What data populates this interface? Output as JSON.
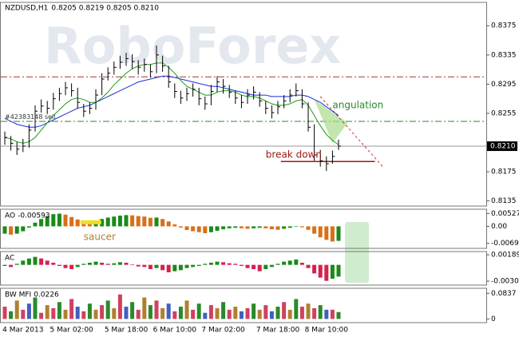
{
  "chart_data": [
    {
      "type": "candlestick",
      "title": "NZDUSD,H1",
      "subtitle": "0.8205 0.8219 0.8205 0.8210",
      "watermark": "RoboForex",
      "categories": [
        null,
        null,
        null,
        "4 Mar 2013",
        null,
        null,
        null,
        null,
        null,
        null,
        null,
        "5 Mar 02:00",
        null,
        null,
        null,
        null,
        null,
        null,
        null,
        null,
        "5 Mar 18:00",
        null,
        null,
        null,
        null,
        null,
        null,
        null,
        "6 Mar 10:00",
        null,
        null,
        null,
        null,
        null,
        null,
        null,
        "7 Mar 02:00",
        null,
        null,
        null,
        null,
        null,
        null,
        null,
        null,
        "7 Mar 18:00",
        null,
        null,
        null,
        null,
        null,
        null,
        null,
        "8 Mar 10:00",
        null,
        null
      ],
      "high": [
        0.823,
        0.8224,
        0.8216,
        0.822,
        0.824,
        0.8266,
        0.8274,
        0.8272,
        0.8283,
        0.829,
        0.8298,
        0.8296,
        0.829,
        0.8268,
        0.827,
        0.8288,
        0.831,
        0.8318,
        0.8326,
        0.8334,
        0.8338,
        0.8336,
        0.8328,
        0.833,
        0.8322,
        0.8348,
        0.8334,
        0.832,
        0.8296,
        0.8286,
        0.829,
        0.8296,
        0.829,
        0.8278,
        0.8294,
        0.8306,
        0.8302,
        0.8294,
        0.8286,
        0.828,
        0.8288,
        0.8292,
        0.8284,
        0.8272,
        0.8266,
        0.8272,
        0.828,
        0.8288,
        0.8296,
        0.8288,
        0.827,
        0.824,
        0.8205,
        0.8196,
        0.8204,
        0.8219
      ],
      "low": [
        0.8212,
        0.8204,
        0.8198,
        0.8202,
        0.8208,
        0.823,
        0.8256,
        0.8254,
        0.826,
        0.8272,
        0.828,
        0.8278,
        0.8262,
        0.825,
        0.8254,
        0.826,
        0.828,
        0.83,
        0.8308,
        0.8316,
        0.832,
        0.8316,
        0.8308,
        0.8312,
        0.8304,
        0.831,
        0.8312,
        0.829,
        0.8276,
        0.8268,
        0.8272,
        0.8278,
        0.8266,
        0.826,
        0.8266,
        0.8284,
        0.8282,
        0.8276,
        0.8268,
        0.8262,
        0.8268,
        0.8274,
        0.8264,
        0.8254,
        0.8248,
        0.8254,
        0.8262,
        0.827,
        0.8278,
        0.8262,
        0.823,
        0.819,
        0.8182,
        0.8176,
        0.8186,
        0.8205
      ],
      "close": [
        0.8222,
        0.8214,
        0.8206,
        0.821,
        0.8232,
        0.8258,
        0.8265,
        0.8262,
        0.8275,
        0.8282,
        0.829,
        0.8286,
        0.827,
        0.8258,
        0.8262,
        0.828,
        0.8302,
        0.831,
        0.8318,
        0.8325,
        0.833,
        0.8326,
        0.8318,
        0.8322,
        0.8312,
        0.8335,
        0.832,
        0.8298,
        0.8285,
        0.8276,
        0.8282,
        0.8288,
        0.8275,
        0.8268,
        0.8285,
        0.8298,
        0.8292,
        0.8284,
        0.8276,
        0.827,
        0.828,
        0.8284,
        0.8272,
        0.8262,
        0.8256,
        0.8264,
        0.8272,
        0.828,
        0.8286,
        0.8268,
        0.8236,
        0.8198,
        0.819,
        0.8186,
        0.8196,
        0.821
      ],
      "color": "#000000",
      "moving_averages": [
        {
          "color": "#1f2fd0",
          "values": [
            0.8248,
            0.8244,
            0.824,
            0.8238,
            0.8236,
            0.8236,
            0.8238,
            0.8242,
            0.8246,
            0.825,
            0.8254,
            0.8258,
            0.8262,
            0.8264,
            0.8266,
            0.827,
            0.8274,
            0.8278,
            0.8282,
            0.8286,
            0.829,
            0.8294,
            0.8298,
            0.83,
            0.8302,
            0.8304,
            0.8306,
            0.8306,
            0.8304,
            0.8302,
            0.83,
            0.8298,
            0.8296,
            0.8294,
            0.8292,
            0.8292,
            0.829,
            0.8288,
            0.8286,
            0.8284,
            0.8282,
            0.828,
            0.828,
            0.828,
            0.8278,
            0.8278,
            0.8278,
            0.8278,
            0.828,
            0.828,
            0.8278,
            0.8274,
            0.827,
            0.8264,
            0.8258,
            0.8252
          ]
        },
        {
          "color": "#1a9a1a",
          "values": [
            0.8222,
            0.822,
            0.8216,
            0.8214,
            0.8216,
            0.8222,
            0.8232,
            0.8242,
            0.8252,
            0.826,
            0.8268,
            0.8274,
            0.8276,
            0.8274,
            0.827,
            0.827,
            0.8276,
            0.8284,
            0.8294,
            0.8302,
            0.831,
            0.8316,
            0.832,
            0.8322,
            0.8322,
            0.8324,
            0.8324,
            0.8318,
            0.831,
            0.83,
            0.8292,
            0.8288,
            0.8284,
            0.828,
            0.828,
            0.8284,
            0.8286,
            0.8286,
            0.8284,
            0.828,
            0.8278,
            0.8278,
            0.8276,
            0.8272,
            0.8268,
            0.8266,
            0.8266,
            0.8268,
            0.8272,
            0.8274,
            0.8266,
            0.8252,
            0.8238,
            0.8226,
            0.8218,
            0.8212
          ]
        }
      ],
      "levels": [
        {
          "value": 0.8305,
          "color": "#b03030"
        },
        {
          "value": 0.8244,
          "color": "#2a8a2a"
        }
      ],
      "current_price": {
        "value": 0.821,
        "label": "0.8210"
      },
      "annotations": {
        "angulation": "angulation",
        "break_down": "break down",
        "order": "#42383148 sell"
      },
      "ylim": [
        0.8128,
        0.8407
      ],
      "yticks": [
        0.8375,
        0.8335,
        0.8295,
        0.8255,
        0.8175,
        0.8135
      ]
    },
    {
      "type": "bar",
      "name": "AO",
      "up_color": "#1a8a1a",
      "down_color": "#d8701a",
      "annotation": "saucer",
      "values": [
        -0.003,
        -0.0034,
        -0.003,
        -0.002,
        -0.0005,
        0.0015,
        0.003,
        0.0042,
        0.005,
        0.0052,
        0.0048,
        0.0038,
        0.0028,
        0.002,
        0.0018,
        0.0022,
        0.003,
        0.0036,
        0.004,
        0.0044,
        0.0046,
        0.0045,
        0.0042,
        0.004,
        0.0035,
        0.0036,
        0.003,
        0.002,
        0.0008,
        -0.0005,
        -0.0015,
        -0.002,
        -0.0024,
        -0.0028,
        -0.0024,
        -0.0018,
        -0.0012,
        -0.0008,
        -0.0006,
        -0.0008,
        -0.001,
        -0.0008,
        -0.0006,
        -0.0008,
        -0.0012,
        -0.0014,
        -0.001,
        -0.0006,
        -0.0002,
        -0.0004,
        -0.0014,
        -0.003,
        -0.0045,
        -0.0055,
        -0.0062,
        -0.00593
      ],
      "ylim": [
        -0.009,
        0.007
      ],
      "yticks": [
        0.00527,
        {
          "value": 0,
          "label": "0.00"
        },
        -0.00695
      ]
    },
    {
      "type": "bar",
      "name": "AC",
      "up_color": "#1a8a1a",
      "down_color": "#d82050",
      "values": [
        -0.0002,
        -0.0004,
        0.0002,
        0.0008,
        0.0012,
        0.0015,
        0.0012,
        0.0008,
        0.0004,
        -0.0002,
        -0.0006,
        -0.0008,
        -0.0004,
        0.0002,
        0.0004,
        0.0006,
        0.0004,
        0.0002,
        0.0003,
        0.0005,
        0.0004,
        0.0001,
        -0.0003,
        -0.0004,
        -0.0008,
        -0.0006,
        -0.001,
        -0.0014,
        -0.0012,
        -0.001,
        -0.0006,
        -0.0004,
        -0.0002,
        0.0002,
        0.0004,
        0.0006,
        0.0005,
        0.0003,
        0.0002,
        -0.0002,
        -0.0006,
        -0.0008,
        -0.0012,
        -0.0008,
        -0.0004,
        0.0002,
        0.0006,
        0.0008,
        0.001,
        0.0004,
        -0.0006,
        -0.0016,
        -0.0024,
        -0.003,
        -0.0026,
        -0.0022
      ],
      "ylim": [
        -0.0038,
        0.0025
      ],
      "yticks": [
        0.00189,
        -0.00305
      ]
    },
    {
      "type": "bar",
      "name": "BW MFI",
      "values": [
        0.04,
        0.025,
        0.06,
        0.03,
        0.05,
        0.07,
        0.02,
        0.045,
        0.035,
        0.055,
        0.03,
        0.065,
        0.04,
        0.025,
        0.05,
        0.03,
        0.045,
        0.06,
        0.035,
        0.08,
        0.04,
        0.055,
        0.03,
        0.07,
        0.045,
        0.06,
        0.035,
        0.05,
        0.025,
        0.04,
        0.06,
        0.03,
        0.05,
        0.02,
        0.045,
        0.035,
        0.055,
        0.03,
        0.04,
        0.025,
        0.035,
        0.05,
        0.03,
        0.045,
        0.025,
        0.04,
        0.055,
        0.03,
        0.065,
        0.04,
        0.05,
        0.035,
        0.045,
        0.03,
        0.03,
        0.0226
      ],
      "colors": [
        "#d04060",
        "#2a8a2a",
        "#b08030",
        "#d04060",
        "#4060c0",
        "#2a8a2a",
        "#d04060",
        "#b08030",
        "#d04060",
        "#2a8a2a",
        "#b08030",
        "#d04060",
        "#4060c0",
        "#d04060",
        "#2a8a2a",
        "#b08030",
        "#d04060",
        "#2a8a2a",
        "#b08030",
        "#d04060",
        "#4060c0",
        "#2a8a2a",
        "#d04060",
        "#b08030",
        "#2a8a2a",
        "#d04060",
        "#b08030",
        "#4060c0",
        "#d04060",
        "#2a8a2a",
        "#b08030",
        "#d04060",
        "#2a8a2a",
        "#4060c0",
        "#d04060",
        "#b08030",
        "#2a8a2a",
        "#d04060",
        "#b08030",
        "#4060c0",
        "#d04060",
        "#2a8a2a",
        "#b08030",
        "#d04060",
        "#4060c0",
        "#2a8a2a",
        "#d04060",
        "#b08030",
        "#2a8a2a",
        "#d04060",
        "#b08030",
        "#d04060",
        "#2a8a2a",
        "#4060c0",
        "#d04060",
        "#2a8a2a"
      ],
      "ylim": [
        -0.012,
        0.1
      ],
      "yticks": [
        0.0837,
        0
      ]
    }
  ]
}
